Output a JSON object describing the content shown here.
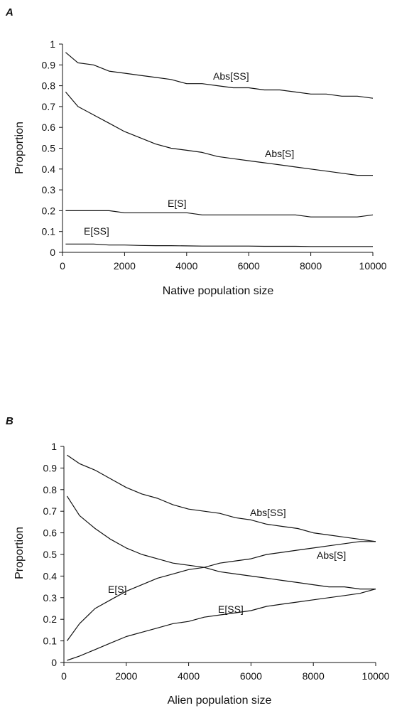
{
  "figure": {
    "chart_data": [
      {
        "panel": "A",
        "type": "line",
        "xlabel": "Native population size",
        "ylabel": "Proportion",
        "xlim": [
          0,
          10000
        ],
        "ylim": [
          0,
          1
        ],
        "xticks": [
          0,
          2000,
          4000,
          6000,
          8000,
          10000
        ],
        "yticks": [
          0,
          0.1,
          0.2,
          0.3,
          0.4,
          0.5,
          0.6,
          0.7,
          0.8,
          0.9,
          1
        ],
        "yticklabels": [
          "0",
          "0.1",
          "0.2",
          "0.3",
          "0.4",
          "0.5",
          "0.6",
          "0.7",
          "0.8",
          "0.9",
          "1"
        ],
        "grid": false,
        "series": [
          {
            "name": "Abs[SS]",
            "x": [
              100,
              500,
              1000,
              1500,
              2000,
              2500,
              3000,
              3500,
              4000,
              4500,
              5000,
              5500,
              6000,
              6500,
              7000,
              7500,
              8000,
              8500,
              9000,
              9500,
              10000
            ],
            "y": [
              0.96,
              0.91,
              0.9,
              0.87,
              0.86,
              0.85,
              0.84,
              0.83,
              0.81,
              0.81,
              0.8,
              0.79,
              0.79,
              0.78,
              0.78,
              0.77,
              0.76,
              0.76,
              0.75,
              0.75,
              0.74
            ]
          },
          {
            "name": "Abs[S]",
            "x": [
              100,
              500,
              1000,
              1500,
              2000,
              2500,
              3000,
              3500,
              4000,
              4500,
              5000,
              5500,
              6000,
              6500,
              7000,
              7500,
              8000,
              8500,
              9000,
              9500,
              10000
            ],
            "y": [
              0.77,
              0.7,
              0.66,
              0.62,
              0.58,
              0.55,
              0.52,
              0.5,
              0.49,
              0.48,
              0.46,
              0.45,
              0.44,
              0.43,
              0.42,
              0.41,
              0.4,
              0.39,
              0.38,
              0.37,
              0.37
            ]
          },
          {
            "name": "E[S]",
            "x": [
              100,
              500,
              1000,
              1500,
              2000,
              2500,
              3000,
              3500,
              4000,
              4500,
              5000,
              5500,
              6000,
              6500,
              7000,
              7500,
              8000,
              8500,
              9000,
              9500,
              10000
            ],
            "y": [
              0.2,
              0.2,
              0.2,
              0.2,
              0.19,
              0.19,
              0.19,
              0.19,
              0.19,
              0.18,
              0.18,
              0.18,
              0.18,
              0.18,
              0.18,
              0.18,
              0.17,
              0.17,
              0.17,
              0.17,
              0.18
            ]
          },
          {
            "name": "E[SS]",
            "x": [
              100,
              500,
              1000,
              1500,
              2000,
              2500,
              3000,
              3500,
              4000,
              4500,
              5000,
              5500,
              6000,
              6500,
              7000,
              7500,
              8000,
              8500,
              9000,
              9500,
              10000
            ],
            "y": [
              0.04,
              0.04,
              0.04,
              0.035,
              0.035,
              0.033,
              0.032,
              0.032,
              0.031,
              0.03,
              0.03,
              0.03,
              0.03,
              0.029,
              0.029,
              0.029,
              0.028,
              0.028,
              0.028,
              0.028,
              0.028
            ]
          }
        ]
      },
      {
        "panel": "B",
        "type": "line",
        "xlabel": "Alien population size",
        "ylabel": "Proportion",
        "xlim": [
          0,
          10000
        ],
        "ylim": [
          0,
          1
        ],
        "xticks": [
          0,
          2000,
          4000,
          6000,
          8000,
          10000
        ],
        "yticks": [
          0,
          0.1,
          0.2,
          0.3,
          0.4,
          0.5,
          0.6,
          0.7,
          0.8,
          0.9,
          1
        ],
        "yticklabels": [
          "0",
          "0.1",
          "0.2",
          "0.3",
          "0.4",
          "0.5",
          "0.6",
          "0.7",
          "0.8",
          "0.9",
          "1"
        ],
        "grid": false,
        "series": [
          {
            "name": "Abs[SS]",
            "x": [
              100,
              500,
              1000,
              1500,
              2000,
              2500,
              3000,
              3500,
              4000,
              4500,
              5000,
              5500,
              6000,
              6500,
              7000,
              7500,
              8000,
              8500,
              9000,
              9500,
              10000
            ],
            "y": [
              0.96,
              0.92,
              0.89,
              0.85,
              0.81,
              0.78,
              0.76,
              0.73,
              0.71,
              0.7,
              0.69,
              0.67,
              0.66,
              0.64,
              0.63,
              0.62,
              0.6,
              0.59,
              0.58,
              0.57,
              0.56
            ]
          },
          {
            "name": "Abs[S]",
            "x": [
              100,
              500,
              1000,
              1500,
              2000,
              2500,
              3000,
              3500,
              4000,
              4500,
              5000,
              5500,
              6000,
              6500,
              7000,
              7500,
              8000,
              8500,
              9000,
              9500,
              10000
            ],
            "y": [
              0.77,
              0.68,
              0.62,
              0.57,
              0.53,
              0.5,
              0.48,
              0.46,
              0.45,
              0.44,
              0.42,
              0.41,
              0.4,
              0.39,
              0.38,
              0.37,
              0.36,
              0.35,
              0.35,
              0.34,
              0.34
            ]
          },
          {
            "name": "E[S]",
            "x": [
              100,
              500,
              1000,
              1500,
              2000,
              2500,
              3000,
              3500,
              4000,
              4500,
              5000,
              5500,
              6000,
              6500,
              7000,
              7500,
              8000,
              8500,
              9000,
              9500,
              10000
            ],
            "y": [
              0.1,
              0.18,
              0.25,
              0.29,
              0.33,
              0.36,
              0.39,
              0.41,
              0.43,
              0.44,
              0.46,
              0.47,
              0.48,
              0.5,
              0.51,
              0.52,
              0.53,
              0.54,
              0.55,
              0.56,
              0.56
            ]
          },
          {
            "name": "E[SS]",
            "x": [
              100,
              500,
              1000,
              1500,
              2000,
              2500,
              3000,
              3500,
              4000,
              4500,
              5000,
              5500,
              6000,
              6500,
              7000,
              7500,
              8000,
              8500,
              9000,
              9500,
              10000
            ],
            "y": [
              0.01,
              0.03,
              0.06,
              0.09,
              0.12,
              0.14,
              0.16,
              0.18,
              0.19,
              0.21,
              0.22,
              0.23,
              0.24,
              0.26,
              0.27,
              0.28,
              0.29,
              0.3,
              0.31,
              0.32,
              0.34
            ]
          }
        ]
      }
    ]
  }
}
